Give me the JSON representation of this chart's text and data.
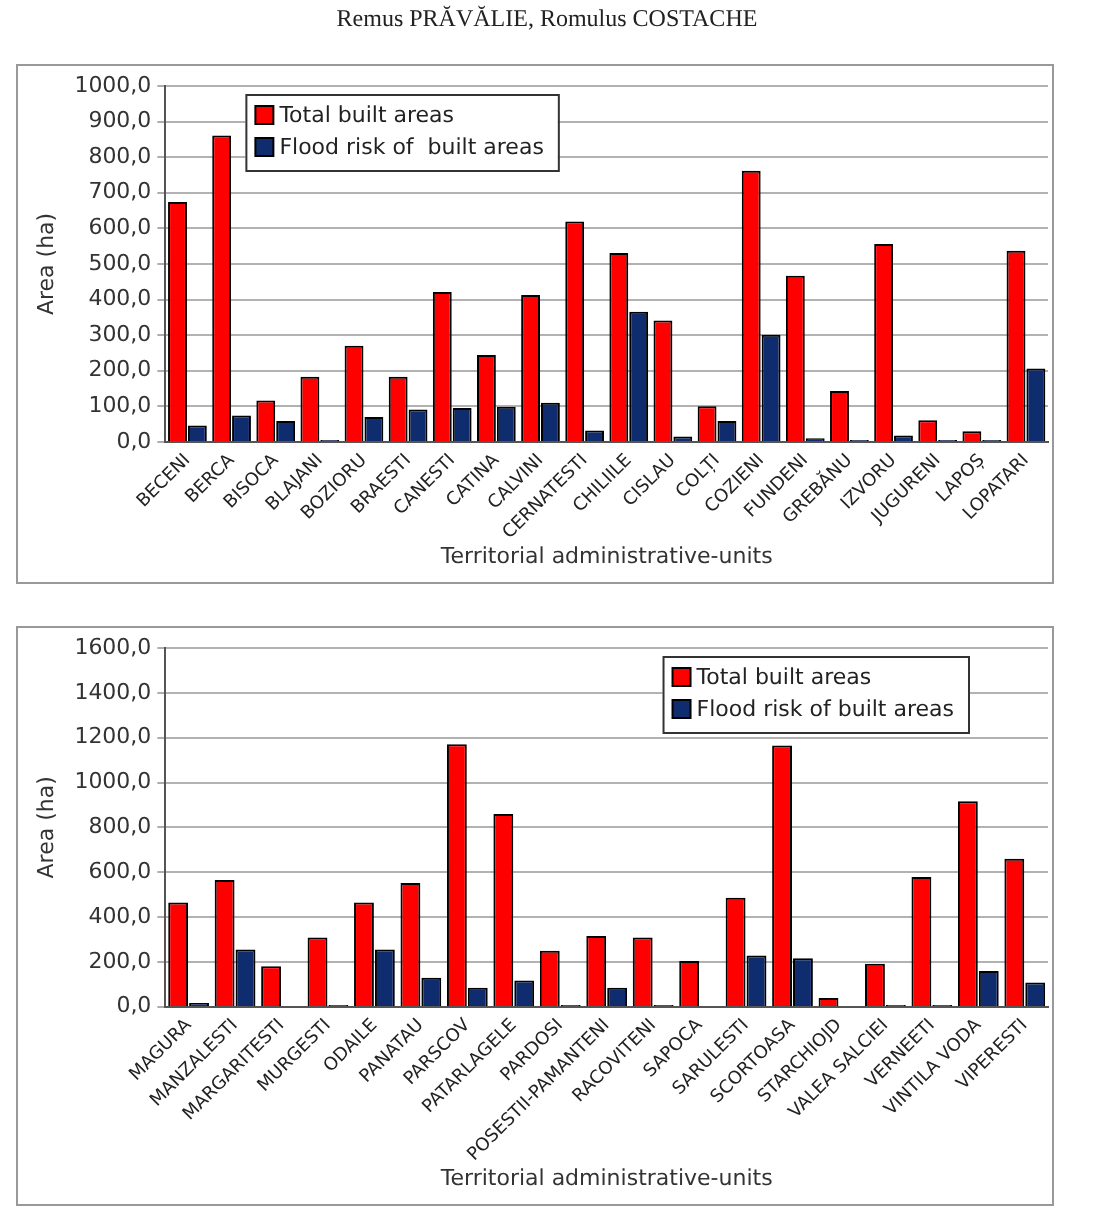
{
  "chart_data": [
    {
      "type": "bar",
      "annotations": [
        "Remus PRĂVĂLIE, Romulus COSTACHE"
      ],
      "xlabel": "Territorial administrative-units",
      "ylabel": "Area (ha)",
      "categories": [
        "BECENI",
        "BERCA",
        "BISOCA",
        "BLAJANI",
        "BOZIORU",
        "BRAESTI",
        "CANESTI",
        "CATINA",
        "CALVINI",
        "CERNATESTI",
        "CHILIILE",
        "CISLAU",
        "COLȚI",
        "COZIENI",
        "FUNDENI",
        "GREBĂNU",
        "IZVORU",
        "JUGURENI",
        "LAPOȘ",
        "LOPATARI"
      ],
      "series": [
        {
          "name": "Total built areas",
          "color": "#ff0000",
          "values": [
            674,
            861,
            116,
            183,
            270,
            183,
            421,
            244,
            413,
            619,
            531,
            341,
            100,
            762,
            467,
            143,
            556,
            61,
            30,
            537
          ]
        },
        {
          "name": "Flood risk of  built areas",
          "color": "#0f2c6e",
          "values": [
            46,
            74,
            59,
            5,
            70,
            91,
            95,
            99,
            110,
            32,
            366,
            15,
            59,
            301,
            10,
            5,
            18,
            5,
            5,
            206
          ]
        }
      ],
      "ylim": [
        0,
        1000
      ],
      "yticks": [
        {
          "value": 0,
          "label": "0,0"
        },
        {
          "value": 100,
          "label": "100,0"
        },
        {
          "value": 200,
          "label": "200,0"
        },
        {
          "value": 300,
          "label": "300,0"
        },
        {
          "value": 400,
          "label": "400,0"
        },
        {
          "value": 500,
          "label": "500,0"
        },
        {
          "value": 600,
          "label": "600,0"
        },
        {
          "value": 700,
          "label": "700,0"
        },
        {
          "value": 800,
          "label": "800,0"
        },
        {
          "value": 900,
          "label": "900,0"
        },
        {
          "value": 1000,
          "label": "1000,0"
        }
      ],
      "grid": "y",
      "legend": "top left"
    },
    {
      "type": "bar",
      "xlabel": "Territorial administrative-units",
      "ylabel": "Area (ha)",
      "categories": [
        "MAGURA",
        "MANZALESTI",
        "MARGARITESTI",
        "MURGESTI",
        "ODAILE",
        "PANATAU",
        "PARSCOV",
        "PATARLAGELE",
        "PARDOSI",
        "POSESTII-PAMANTENI",
        "RACOVITENI",
        "SAPOCA",
        "SARULESTI",
        "SCORTOASA",
        "STARCHIOJD",
        "VALEA SALCIEI",
        "VERNEETI",
        "VINTILA VODA",
        "VIPERESTI"
      ],
      "series": [
        {
          "name": "Total built areas",
          "color": "#ff0000",
          "values": [
            465,
            565,
            180,
            309,
            465,
            552,
            1171,
            859,
            249,
            315,
            309,
            204,
            486,
            1165,
            39,
            192,
            579,
            916,
            660
          ]
        },
        {
          "name": "Flood risk of built areas",
          "color": "#0f2c6e",
          "values": [
            17,
            255,
            0,
            8,
            255,
            129,
            84,
            117,
            8,
            84,
            8,
            0,
            228,
            216,
            0,
            8,
            8,
            159,
            108
          ]
        }
      ],
      "ylim": [
        0,
        1600
      ],
      "yticks": [
        {
          "value": 0,
          "label": "0,0"
        },
        {
          "value": 200,
          "label": "200,0"
        },
        {
          "value": 400,
          "label": "400,0"
        },
        {
          "value": 600,
          "label": "600,0"
        },
        {
          "value": 800,
          "label": "800,0"
        },
        {
          "value": 1000,
          "label": "1000,0"
        },
        {
          "value": 1200,
          "label": "1200,0"
        },
        {
          "value": 1400,
          "label": "1400,0"
        },
        {
          "value": 1600,
          "label": "1600,0"
        }
      ],
      "grid": "y",
      "legend": "top right"
    }
  ]
}
